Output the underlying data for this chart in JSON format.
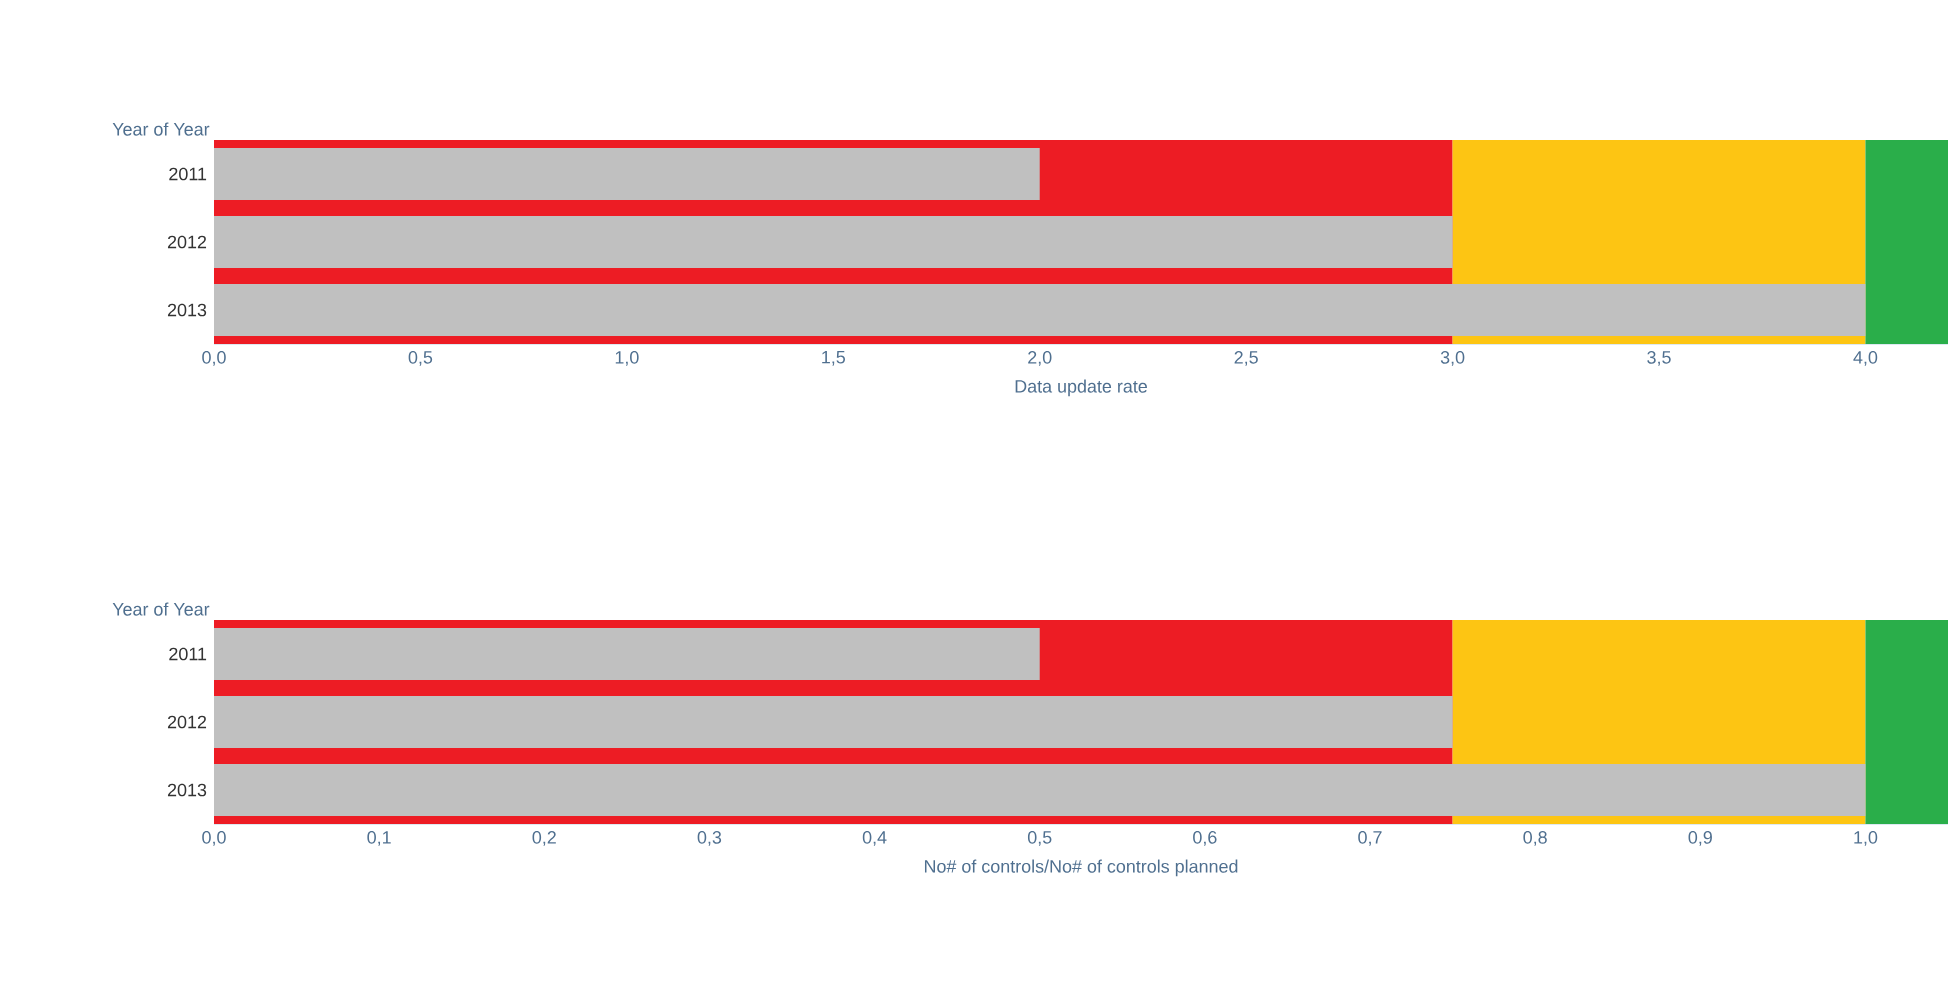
{
  "chart_data": [
    {
      "type": "bar",
      "orientation": "horizontal",
      "ylabel": "Year of Year",
      "xlabel": "Data update rate",
      "categories": [
        "2011",
        "2012",
        "2013"
      ],
      "values": [
        2.0,
        3.0,
        4.0
      ],
      "color": "#c0c0c0",
      "xlim": [
        0,
        4.2
      ],
      "xticks": [
        {
          "value": 0,
          "label": "0,0"
        },
        {
          "value": 0.5,
          "label": "0,5"
        },
        {
          "value": 1,
          "label": "1,0"
        },
        {
          "value": 1.5,
          "label": "1,5"
        },
        {
          "value": 2,
          "label": "2,0"
        },
        {
          "value": 2.5,
          "label": "2,5"
        },
        {
          "value": 3,
          "label": "3,0"
        },
        {
          "value": 3.5,
          "label": "3,5"
        },
        {
          "value": 4,
          "label": "4,0"
        }
      ],
      "bands": [
        {
          "axis": "x",
          "from": 0,
          "to": 3,
          "color": "#ed1c24"
        },
        {
          "axis": "x",
          "from": 3,
          "to": 4,
          "color": "#fdc513"
        },
        {
          "axis": "x",
          "from": 4,
          "to": 4.2,
          "color": "#2aae4a"
        }
      ]
    },
    {
      "type": "bar",
      "orientation": "horizontal",
      "ylabel": "Year of Year",
      "xlabel": "No# of controls/No# of controls planned",
      "categories": [
        "2011",
        "2012",
        "2013"
      ],
      "values": [
        0.5,
        0.75,
        1.0
      ],
      "color": "#c0c0c0",
      "xlim": [
        0,
        1.05
      ],
      "xticks": [
        {
          "value": 0,
          "label": "0,0"
        },
        {
          "value": 0.1,
          "label": "0,1"
        },
        {
          "value": 0.2,
          "label": "0,2"
        },
        {
          "value": 0.3,
          "label": "0,3"
        },
        {
          "value": 0.4,
          "label": "0,4"
        },
        {
          "value": 0.5,
          "label": "0,5"
        },
        {
          "value": 0.6,
          "label": "0,6"
        },
        {
          "value": 0.7,
          "label": "0,7"
        },
        {
          "value": 0.8,
          "label": "0,8"
        },
        {
          "value": 0.9,
          "label": "0,9"
        },
        {
          "value": 1,
          "label": "1,0"
        }
      ],
      "bands": [
        {
          "axis": "x",
          "from": 0,
          "to": 0.75,
          "color": "#ed1c24"
        },
        {
          "axis": "x",
          "from": 0.75,
          "to": 1,
          "color": "#fdc513"
        },
        {
          "axis": "x",
          "from": 1,
          "to": 1.05,
          "color": "#2aae4a"
        }
      ]
    }
  ]
}
